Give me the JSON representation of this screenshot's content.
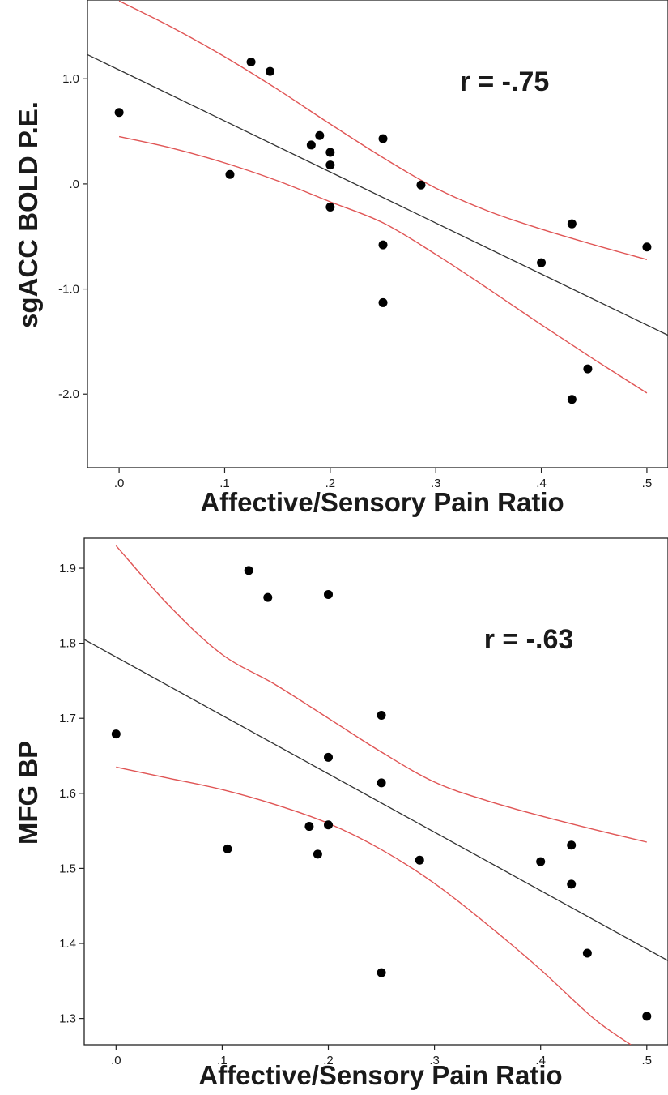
{
  "chart_data": [
    {
      "type": "scatter",
      "title": "",
      "xlabel": "Affective/Sensory Pain Ratio",
      "ylabel": "sgACC BOLD P.E.",
      "xlim": [
        -0.03,
        0.52
      ],
      "ylim": [
        -2.7,
        1.75
      ],
      "x_ticks": [
        0.0,
        0.1,
        0.2,
        0.3,
        0.4,
        0.5
      ],
      "x_tick_labels": [
        ".0",
        ".1",
        ".2",
        ".3",
        ".4",
        ".5"
      ],
      "y_ticks": [
        1.0,
        0.0,
        -1.0,
        -2.0
      ],
      "y_tick_labels": [
        "1.0",
        ".0",
        "-1.0",
        "-2.0"
      ],
      "annotation": "r = -.75",
      "grid": false,
      "colors": {
        "points": "#000000",
        "fit_line": "#333333",
        "confidence_band": "#e05555"
      },
      "points": [
        {
          "x": 0.0,
          "y": 0.68
        },
        {
          "x": 0.105,
          "y": 0.09
        },
        {
          "x": 0.125,
          "y": 1.16
        },
        {
          "x": 0.143,
          "y": 1.07
        },
        {
          "x": 0.182,
          "y": 0.37
        },
        {
          "x": 0.19,
          "y": 0.46
        },
        {
          "x": 0.2,
          "y": 0.3
        },
        {
          "x": 0.2,
          "y": 0.18
        },
        {
          "x": 0.2,
          "y": -0.22
        },
        {
          "x": 0.25,
          "y": 0.43
        },
        {
          "x": 0.25,
          "y": -0.58
        },
        {
          "x": 0.25,
          "y": -1.13
        },
        {
          "x": 0.286,
          "y": -0.01
        },
        {
          "x": 0.4,
          "y": -0.75
        },
        {
          "x": 0.429,
          "y": -0.38
        },
        {
          "x": 0.429,
          "y": -2.05
        },
        {
          "x": 0.444,
          "y": -1.76
        },
        {
          "x": 0.5,
          "y": -0.6
        }
      ],
      "fit_line": [
        {
          "x": -0.03,
          "y": 1.23
        },
        {
          "x": 0.52,
          "y": -1.44
        }
      ],
      "ci_upper": [
        {
          "x": 0.0,
          "y": 1.74
        },
        {
          "x": 0.05,
          "y": 1.49
        },
        {
          "x": 0.1,
          "y": 1.21
        },
        {
          "x": 0.15,
          "y": 0.9
        },
        {
          "x": 0.2,
          "y": 0.57
        },
        {
          "x": 0.25,
          "y": 0.25
        },
        {
          "x": 0.3,
          "y": -0.04
        },
        {
          "x": 0.35,
          "y": -0.26
        },
        {
          "x": 0.4,
          "y": -0.43
        },
        {
          "x": 0.45,
          "y": -0.58
        },
        {
          "x": 0.5,
          "y": -0.72
        }
      ],
      "ci_lower": [
        {
          "x": 0.0,
          "y": 0.45
        },
        {
          "x": 0.05,
          "y": 0.34
        },
        {
          "x": 0.1,
          "y": 0.2
        },
        {
          "x": 0.15,
          "y": 0.03
        },
        {
          "x": 0.2,
          "y": -0.17
        },
        {
          "x": 0.25,
          "y": -0.37
        },
        {
          "x": 0.3,
          "y": -0.67
        },
        {
          "x": 0.35,
          "y": -1.0
        },
        {
          "x": 0.4,
          "y": -1.34
        },
        {
          "x": 0.45,
          "y": -1.67
        },
        {
          "x": 0.5,
          "y": -1.99
        }
      ]
    },
    {
      "type": "scatter",
      "title": "",
      "xlabel": "Affective/Sensory Pain Ratio",
      "ylabel": "MFG BP",
      "xlim": [
        -0.03,
        0.52
      ],
      "ylim": [
        1.265,
        1.94
      ],
      "x_ticks": [
        0.0,
        0.1,
        0.2,
        0.3,
        0.4,
        0.5
      ],
      "x_tick_labels": [
        ".0",
        ".1",
        ".2",
        ".3",
        ".4",
        ".5"
      ],
      "y_ticks": [
        1.9,
        1.8,
        1.7,
        1.6,
        1.5,
        1.4,
        1.3
      ],
      "y_tick_labels": [
        "1.9",
        "1.8",
        "1.7",
        "1.6",
        "1.5",
        "1.4",
        "1.3"
      ],
      "annotation": "r = -.63",
      "grid": false,
      "colors": {
        "points": "#000000",
        "fit_line": "#333333",
        "confidence_band": "#e05555"
      },
      "points": [
        {
          "x": 0.0,
          "y": 1.679
        },
        {
          "x": 0.105,
          "y": 1.526
        },
        {
          "x": 0.125,
          "y": 1.897
        },
        {
          "x": 0.143,
          "y": 1.861
        },
        {
          "x": 0.182,
          "y": 1.556
        },
        {
          "x": 0.19,
          "y": 1.519
        },
        {
          "x": 0.2,
          "y": 1.865
        },
        {
          "x": 0.2,
          "y": 1.648
        },
        {
          "x": 0.2,
          "y": 1.558
        },
        {
          "x": 0.25,
          "y": 1.704
        },
        {
          "x": 0.25,
          "y": 1.614
        },
        {
          "x": 0.25,
          "y": 1.361
        },
        {
          "x": 0.286,
          "y": 1.511
        },
        {
          "x": 0.4,
          "y": 1.509
        },
        {
          "x": 0.429,
          "y": 1.531
        },
        {
          "x": 0.429,
          "y": 1.479
        },
        {
          "x": 0.444,
          "y": 1.387
        },
        {
          "x": 0.5,
          "y": 1.303
        }
      ],
      "fit_line": [
        {
          "x": -0.03,
          "y": 1.805
        },
        {
          "x": 0.52,
          "y": 1.377
        }
      ],
      "ci_upper": [
        {
          "x": 0.0,
          "y": 1.93
        },
        {
          "x": 0.05,
          "y": 1.85
        },
        {
          "x": 0.1,
          "y": 1.785
        },
        {
          "x": 0.15,
          "y": 1.745
        },
        {
          "x": 0.2,
          "y": 1.7
        },
        {
          "x": 0.25,
          "y": 1.655
        },
        {
          "x": 0.3,
          "y": 1.615
        },
        {
          "x": 0.35,
          "y": 1.59
        },
        {
          "x": 0.4,
          "y": 1.57
        },
        {
          "x": 0.45,
          "y": 1.552
        },
        {
          "x": 0.5,
          "y": 1.535
        }
      ],
      "ci_lower": [
        {
          "x": 0.0,
          "y": 1.635
        },
        {
          "x": 0.05,
          "y": 1.62
        },
        {
          "x": 0.1,
          "y": 1.605
        },
        {
          "x": 0.15,
          "y": 1.585
        },
        {
          "x": 0.2,
          "y": 1.56
        },
        {
          "x": 0.25,
          "y": 1.525
        },
        {
          "x": 0.3,
          "y": 1.48
        },
        {
          "x": 0.35,
          "y": 1.425
        },
        {
          "x": 0.4,
          "y": 1.365
        },
        {
          "x": 0.45,
          "y": 1.3
        },
        {
          "x": 0.485,
          "y": 1.265
        }
      ]
    }
  ]
}
